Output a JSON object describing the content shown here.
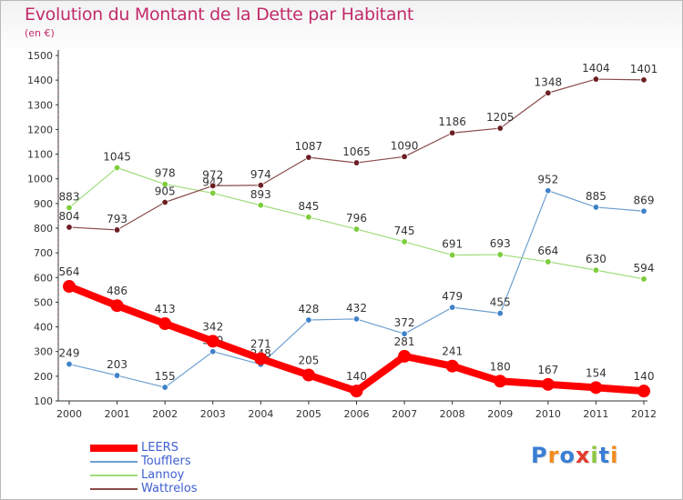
{
  "header": {
    "title": "Evolution du Montant de la Dette par Habitant",
    "subtitle": "(en €)"
  },
  "logo": {
    "text": "Proxiti",
    "letters": [
      "P",
      "r",
      "o",
      "x",
      "i",
      "t",
      "i"
    ],
    "colors": [
      "#3a7fd5",
      "#f28c1c",
      "#3a7fd5",
      "#e23b2e",
      "#8cc63f",
      "#3a7fd5",
      "#f28c1c"
    ]
  },
  "chart_data": {
    "type": "line",
    "title": "Evolution du Montant de la Dette par Habitant",
    "subtitle": "(en €)",
    "xlabel": "",
    "ylabel": "",
    "categories": [
      "2000",
      "2001",
      "2002",
      "2003",
      "2004",
      "2005",
      "2006",
      "2007",
      "2008",
      "2009",
      "2010",
      "2011",
      "2012"
    ],
    "ylim": [
      100,
      1500
    ],
    "yticks": [
      100,
      200,
      300,
      400,
      500,
      600,
      700,
      800,
      900,
      1000,
      1100,
      1200,
      1300,
      1400,
      1500
    ],
    "grid": false,
    "legend_position": "bottom-left",
    "series": [
      {
        "name": "LEERS",
        "color": "#ff0000",
        "marker": "#ff0000",
        "width": 8,
        "emphasis": true,
        "values": [
          564,
          486,
          413,
          342,
          271,
          205,
          140,
          281,
          241,
          180,
          167,
          154,
          140
        ]
      },
      {
        "name": "Toufflers",
        "color": "#6e9fd0",
        "marker": "#3f82c8",
        "width": 1.2,
        "values": [
          249,
          203,
          155,
          300,
          248,
          428,
          432,
          372,
          479,
          455,
          952,
          885,
          869
        ]
      },
      {
        "name": "Lannoy",
        "color": "#9fdc7a",
        "marker": "#7ccd3b",
        "width": 1.2,
        "values": [
          883,
          1045,
          978,
          942,
          893,
          845,
          796,
          745,
          691,
          693,
          664,
          630,
          594
        ]
      },
      {
        "name": "Wattrelos",
        "color": "#8a4a4a",
        "marker": "#6b1f24",
        "width": 1.2,
        "values": [
          804,
          793,
          905,
          972,
          974,
          1087,
          1065,
          1090,
          1186,
          1205,
          1348,
          1404,
          1401
        ]
      }
    ]
  }
}
